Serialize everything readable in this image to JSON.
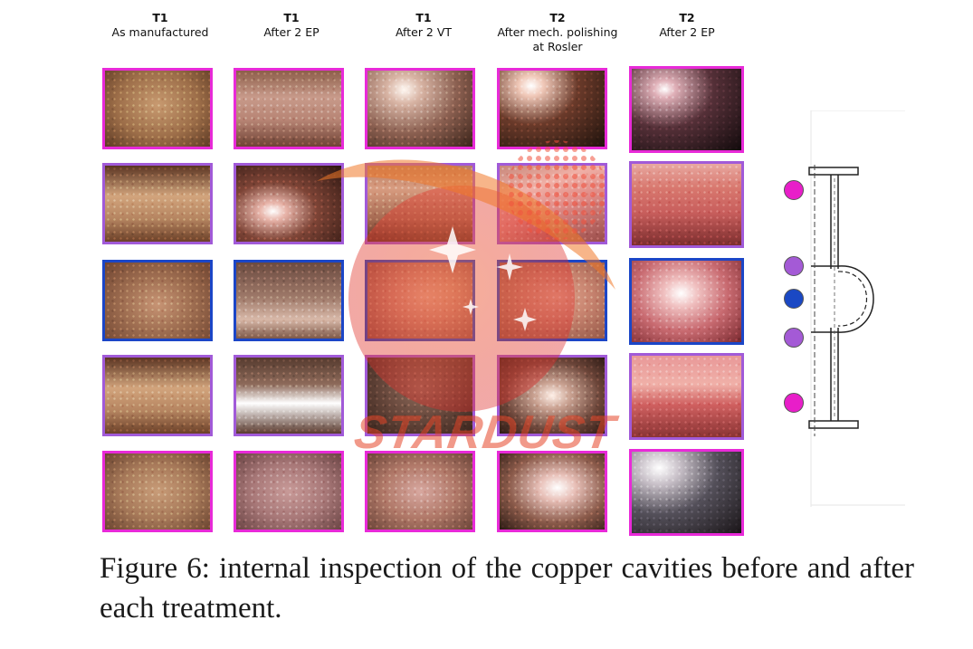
{
  "columns": [
    {
      "trial": "T1",
      "label": "As manufactured"
    },
    {
      "trial": "T1",
      "label": "After 2 EP"
    },
    {
      "trial": "T1",
      "label": "After 2 VT"
    },
    {
      "trial": "T2",
      "label": "After mech. polishing\nat Rosler"
    },
    {
      "trial": "T2",
      "label": "After 2 EP"
    }
  ],
  "row_position_colors": [
    "#e81ec9",
    "#a45ad6",
    "#1a48c4",
    "#a45ad6",
    "#e81ec9"
  ],
  "border_colors": {
    "magenta": "#e82ad8",
    "purple": "#a15ad8",
    "blue": "#1b46c7"
  },
  "watermark": {
    "text": "STARDUST"
  },
  "caption": "Figure 6: internal inspection of the copper cavities before and after each treatment."
}
